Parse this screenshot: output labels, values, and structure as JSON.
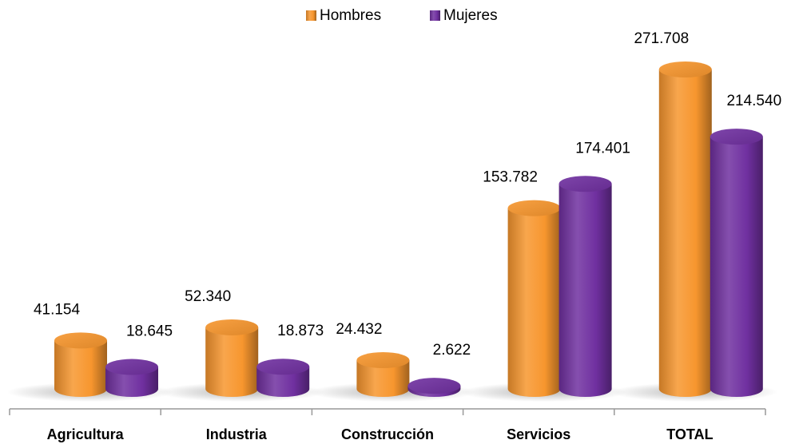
{
  "chart_data": {
    "type": "bar",
    "categories": [
      "Agricultura",
      "Industria",
      "Construcción",
      "Servicios",
      "TOTAL"
    ],
    "series": [
      {
        "name": "Hombres",
        "color": "#f7962e",
        "values": [
          41154,
          52340,
          24432,
          153782,
          271708
        ],
        "value_labels": [
          "41.154",
          "52.340",
          "24.432",
          "153.782",
          "271.708"
        ]
      },
      {
        "name": "Mujeres",
        "color": "#7030a0",
        "values": [
          18645,
          18873,
          2622,
          174401,
          214540
        ],
        "value_labels": [
          "18.645",
          "18.873",
          "2.622",
          "174.401",
          "214.540"
        ]
      }
    ],
    "legend": "top"
  }
}
